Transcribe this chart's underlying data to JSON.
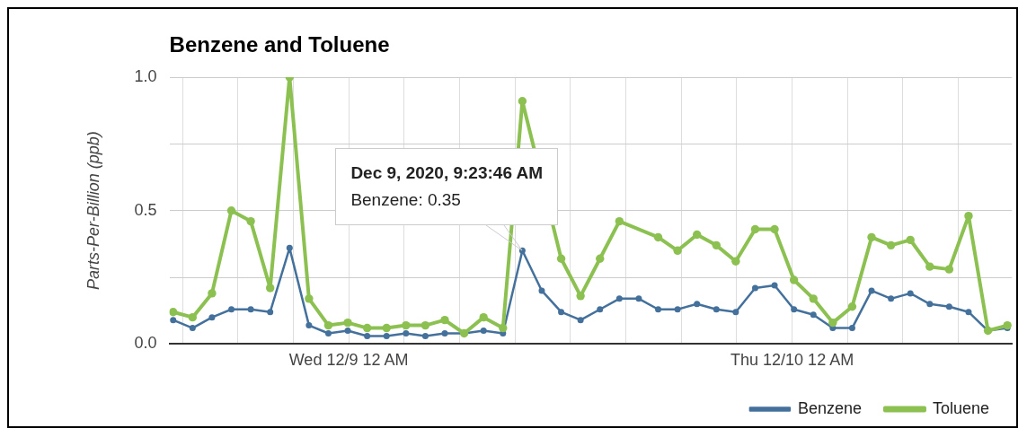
{
  "chart_data": {
    "type": "line",
    "title": "Benzene and Toluene",
    "ylabel": "Parts-Per-Billion (ppb)",
    "x": [
      "2020-12-08T14:30",
      "2020-12-08T15:33",
      "2020-12-08T16:36",
      "2020-12-08T17:39",
      "2020-12-08T18:42",
      "2020-12-08T19:45",
      "2020-12-08T20:48",
      "2020-12-08T21:51",
      "2020-12-08T22:54",
      "2020-12-08T23:57",
      "2020-12-09T01:00",
      "2020-12-09T02:03",
      "2020-12-09T03:06",
      "2020-12-09T04:09",
      "2020-12-09T05:12",
      "2020-12-09T06:15",
      "2020-12-09T07:18",
      "2020-12-09T08:21",
      "2020-12-09T09:24",
      "2020-12-09T10:27",
      "2020-12-09T11:30",
      "2020-12-09T12:33",
      "2020-12-09T13:36",
      "2020-12-09T14:39",
      "2020-12-09T15:42",
      "2020-12-09T16:45",
      "2020-12-09T17:48",
      "2020-12-09T18:51",
      "2020-12-09T19:54",
      "2020-12-09T20:57",
      "2020-12-09T22:00",
      "2020-12-09T23:03",
      "2020-12-10T00:06",
      "2020-12-10T01:09",
      "2020-12-10T02:12",
      "2020-12-10T03:15",
      "2020-12-10T04:18",
      "2020-12-10T05:21",
      "2020-12-10T06:24",
      "2020-12-10T07:27",
      "2020-12-10T08:30",
      "2020-12-10T09:33",
      "2020-12-10T10:36",
      "2020-12-10T11:39"
    ],
    "series": [
      {
        "name": "Benzene",
        "color": "#44709c",
        "values": [
          0.09,
          0.06,
          0.1,
          0.13,
          0.13,
          0.12,
          0.36,
          0.07,
          0.04,
          0.05,
          0.03,
          0.03,
          0.04,
          0.03,
          0.04,
          0.04,
          0.05,
          0.04,
          0.35,
          0.2,
          0.12,
          0.09,
          0.13,
          0.17,
          0.17,
          0.13,
          0.13,
          0.15,
          0.13,
          0.12,
          0.21,
          0.22,
          0.13,
          0.11,
          0.06,
          0.06,
          0.2,
          0.17,
          0.19,
          0.15,
          0.14,
          0.12,
          0.05,
          0.06
        ]
      },
      {
        "name": "Toluene",
        "color": "#8cc152",
        "values": [
          0.12,
          0.1,
          0.19,
          0.5,
          0.46,
          0.21,
          1.0,
          0.17,
          0.07,
          0.08,
          0.06,
          0.06,
          0.07,
          0.07,
          0.09,
          0.04,
          0.1,
          0.06,
          0.91,
          null,
          0.32,
          0.18,
          0.32,
          0.46,
          null,
          0.4,
          0.35,
          0.41,
          0.37,
          0.31,
          0.43,
          0.43,
          0.24,
          0.17,
          0.08,
          0.14,
          0.4,
          0.37,
          0.39,
          0.29,
          0.28,
          0.48,
          0.05,
          0.07
        ]
      }
    ],
    "xlim": [
      "2020-12-08T14:18",
      "2020-12-10T11:54"
    ],
    "xticks": [
      {
        "value": "2020-12-08T15:00",
        "label": null
      },
      {
        "value": "2020-12-08T18:00",
        "label": null
      },
      {
        "value": "2020-12-08T21:00",
        "label": null
      },
      {
        "value": "2020-12-09T00:00",
        "label": "Wed 12/9 12 AM"
      },
      {
        "value": "2020-12-09T03:00",
        "label": null
      },
      {
        "value": "2020-12-09T06:00",
        "label": null
      },
      {
        "value": "2020-12-09T09:00",
        "label": null
      },
      {
        "value": "2020-12-09T12:00",
        "label": null
      },
      {
        "value": "2020-12-09T15:00",
        "label": null
      },
      {
        "value": "2020-12-09T18:00",
        "label": null
      },
      {
        "value": "2020-12-09T21:00",
        "label": null
      },
      {
        "value": "2020-12-10T00:00",
        "label": "Thu 12/10 12 AM"
      },
      {
        "value": "2020-12-10T03:00",
        "label": null
      },
      {
        "value": "2020-12-10T06:00",
        "label": null
      },
      {
        "value": "2020-12-10T09:00",
        "label": null
      }
    ],
    "ylim": [
      0,
      1.0
    ],
    "yticks": [
      {
        "value": 0,
        "label": "0.0"
      },
      {
        "value": 0.25,
        "label": null
      },
      {
        "value": 0.5,
        "label": "0.5"
      },
      {
        "value": 0.75,
        "label": null
      },
      {
        "value": 1.0,
        "label": "1.0"
      }
    ],
    "grid": true,
    "legend": "bottom right",
    "marker": "circle",
    "line_style": "solid",
    "annotations": [
      {
        "text": "Dec 9, 2020, 9:23:46 AM\nBenzene: 0.35",
        "x": "2020-12-09T09:24",
        "y": 0.35
      }
    ]
  }
}
